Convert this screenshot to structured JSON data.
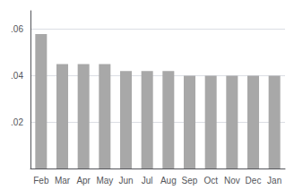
{
  "chart_data": {
    "type": "bar",
    "categories": [
      "Feb",
      "Mar",
      "Apr",
      "May",
      "Jun",
      "Jul",
      "Aug",
      "Sep",
      "Oct",
      "Nov",
      "Dec",
      "Jan"
    ],
    "values": [
      0.058,
      0.045,
      0.045,
      0.045,
      0.042,
      0.042,
      0.042,
      0.04,
      0.04,
      0.04,
      0.04,
      0.04
    ],
    "color": "#a8a8a8",
    "ylim": [
      0,
      0.068
    ],
    "yticks": [
      {
        "value": 0.02,
        "label": ".02"
      },
      {
        "value": 0.04,
        "label": ".04"
      },
      {
        "value": 0.06,
        "label": ".06"
      }
    ],
    "grid": true
  }
}
